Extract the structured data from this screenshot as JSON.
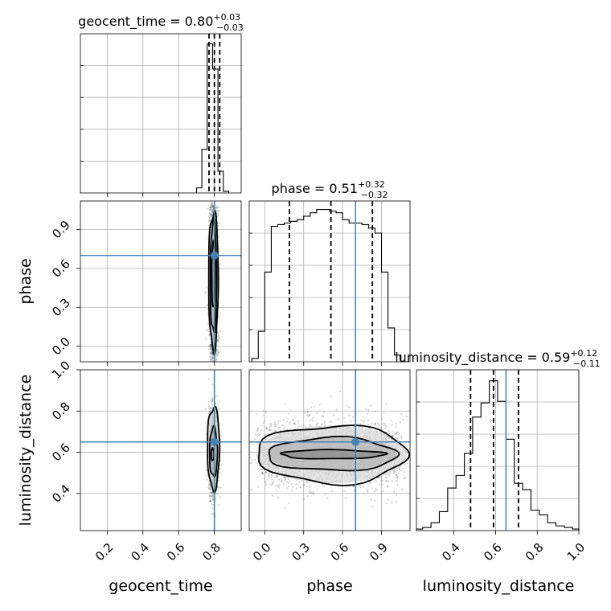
{
  "chart_data": {
    "type": "corner",
    "parameters": [
      "geocent_time",
      "phase",
      "luminosity_distance"
    ],
    "colors": {
      "truth": "#4682b4",
      "histogram": "#000000",
      "grid": "#b0b0b0",
      "sample": "#606060"
    },
    "truths": {
      "geocent_time": 0.8,
      "phase": 0.7,
      "luminosity_distance": 0.65
    },
    "ranges": {
      "geocent_time": [
        0.05,
        0.95
      ],
      "phase": [
        -0.12,
        1.12
      ],
      "luminosity_distance": [
        0.22,
        1.0
      ]
    },
    "ticks": {
      "geocent_time": [
        0.2,
        0.4,
        0.6,
        0.8
      ],
      "phase": [
        0.0,
        0.3,
        0.6,
        0.9
      ],
      "luminosity_distance_bottom": [
        0.4,
        0.6,
        0.8,
        1.0
      ],
      "luminosity_distance_left": [
        0.4,
        0.6,
        0.8,
        1.0
      ]
    },
    "tick_labels": {
      "geocent_time": [
        "0.2",
        "0.4",
        "0.6",
        "0.8"
      ],
      "phase_bottom": [
        "0.0",
        "0.3",
        "0.6",
        "0.9"
      ],
      "phase_left": [
        "0.0",
        "0.3",
        "0.6",
        "0.9"
      ],
      "luminosity_distance_bottom": [
        "0.4",
        "0.6",
        "0.8",
        "1.0"
      ],
      "luminosity_distance_left": [
        "0.4",
        "0.6",
        "0.8",
        "1.0"
      ]
    },
    "axis_labels": {
      "geocent_time": "geocent_time",
      "phase": "phase",
      "luminosity_distance": "luminosity_distance"
    },
    "titles": [
      {
        "prefix": "geocent_time = 0.80",
        "upper": "+0.03",
        "lower": "−0.03"
      },
      {
        "prefix": "phase = 0.51",
        "upper": "+0.32",
        "lower": "−0.32"
      },
      {
        "prefix": "luminosity_distance = 0.59",
        "upper": "+0.12",
        "lower": "−0.11"
      }
    ],
    "quantiles": {
      "geocent_time": [
        0.77,
        0.8,
        0.83
      ],
      "phase": [
        0.19,
        0.51,
        0.83
      ],
      "luminosity_distance": [
        0.48,
        0.59,
        0.71
      ]
    },
    "histograms": {
      "geocent_time": {
        "edges": [
          0.7,
          0.73,
          0.76,
          0.79,
          0.82,
          0.85,
          0.88
        ],
        "counts": [
          0.03,
          0.26,
          0.89,
          0.74,
          0.13,
          0.01
        ],
        "ymax": 0.95
      },
      "phase": {
        "edges": [
          -0.1,
          -0.05,
          0.0,
          0.05,
          0.1,
          0.15,
          0.2,
          0.25,
          0.3,
          0.35,
          0.4,
          0.45,
          0.5,
          0.55,
          0.6,
          0.65,
          0.7,
          0.75,
          0.8,
          0.85,
          0.9,
          0.95,
          1.0,
          1.05,
          1.1
        ],
        "counts": [
          0.02,
          0.18,
          0.53,
          0.8,
          0.81,
          0.82,
          0.83,
          0.84,
          0.86,
          0.88,
          0.9,
          0.9,
          0.89,
          0.88,
          0.84,
          0.82,
          0.82,
          0.81,
          0.79,
          0.76,
          0.53,
          0.2,
          0.04,
          0.0
        ],
        "ymax": 0.95
      },
      "luminosity_distance": {
        "edges": [
          0.22,
          0.25,
          0.29,
          0.33,
          0.37,
          0.41,
          0.45,
          0.49,
          0.53,
          0.57,
          0.61,
          0.65,
          0.69,
          0.73,
          0.77,
          0.81,
          0.85,
          0.89,
          0.93,
          0.97,
          1.0
        ],
        "counts": [
          0.01,
          0.02,
          0.05,
          0.12,
          0.27,
          0.35,
          0.49,
          0.72,
          0.81,
          0.95,
          0.82,
          0.58,
          0.3,
          0.26,
          0.13,
          0.1,
          0.05,
          0.03,
          0.02,
          0.01
        ],
        "ymax": 1.02
      }
    },
    "posteriors": {
      "phase_vs_geocent_time": {
        "center_x": 0.795,
        "center_y": 0.51,
        "contours": [
          {
            "rx": 0.01,
            "ry": 0.25,
            "shift": [
              0.0,
              0.04
            ]
          },
          {
            "rx": 0.018,
            "ry": 0.43,
            "shift": [
              0.0,
              0.02
            ]
          },
          {
            "rx": 0.027,
            "ry": 0.53,
            "shift": [
              0.0,
              0.0
            ]
          }
        ]
      },
      "luminosity_distance_vs_geocent_time": {
        "center_x": 0.795,
        "center_y": 0.6,
        "contours": [
          {
            "rx": 0.008,
            "ry": 0.03,
            "shift": [
              -0.005,
              -0.01
            ]
          },
          {
            "rx": 0.022,
            "ry": 0.12,
            "shift": [
              0.0,
              0.0
            ]
          },
          {
            "rx": 0.034,
            "ry": 0.2,
            "shift": [
              0.0,
              0.02
            ]
          }
        ]
      },
      "luminosity_distance_vs_phase": {
        "center_x": 0.52,
        "center_y": 0.59,
        "contours": [
          {
            "rx": 0.4,
            "ry": 0.022,
            "shift": [
              0.0,
              0.0
            ]
          },
          {
            "rx": 0.5,
            "ry": 0.08,
            "shift": [
              0.0,
              0.0
            ]
          },
          {
            "rx": 0.58,
            "ry": 0.14,
            "shift": [
              0.0,
              0.0
            ]
          }
        ]
      }
    }
  }
}
